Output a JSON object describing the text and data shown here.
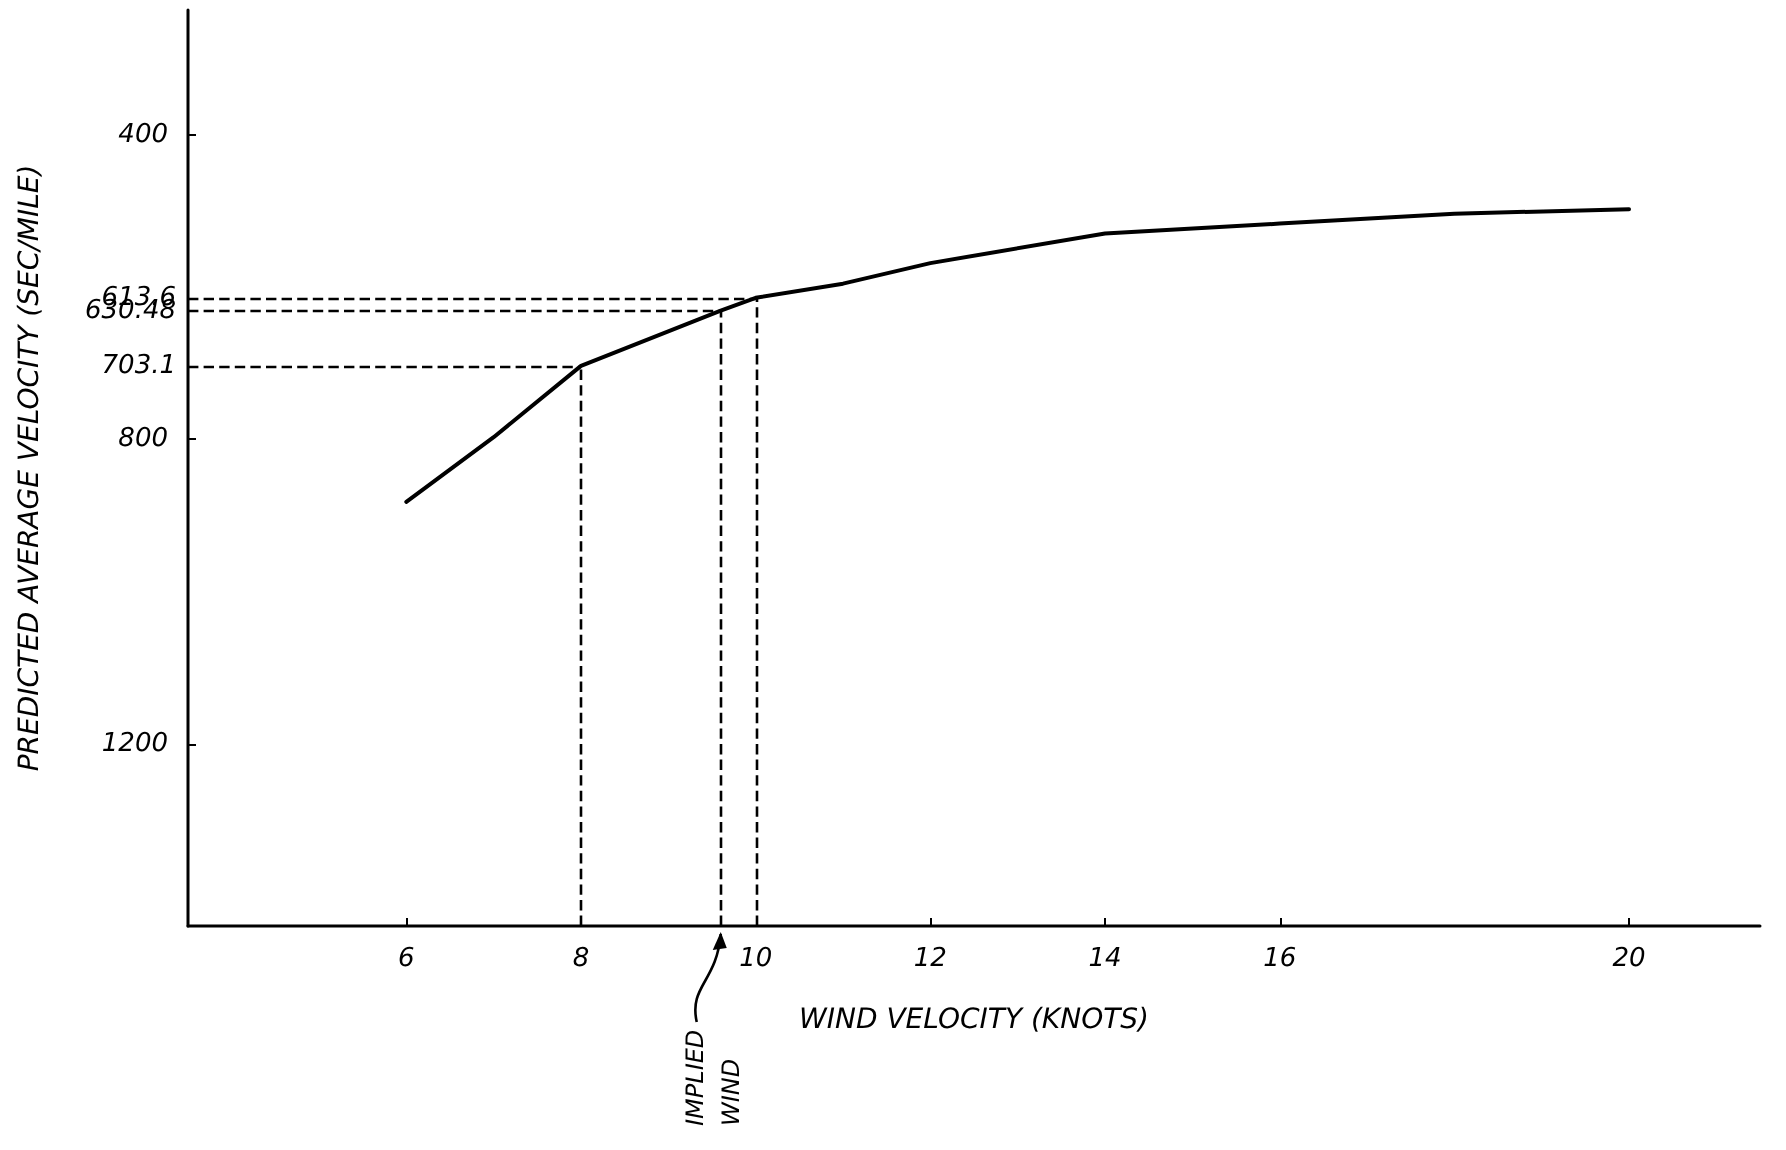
{
  "chart_data": {
    "type": "line",
    "xlabel": "WIND VELOCITY (KNOTS)",
    "ylabel": "PREDICTED AVERAGE VELOCITY (SEC/MILE)",
    "x": [
      6,
      7,
      8,
      9.6,
      10,
      11,
      12,
      14,
      16,
      18,
      20
    ],
    "series": [
      {
        "color": "#000000",
        "values": [
          882,
          797,
          703.1,
          630.48,
          613.6,
          595,
          568,
          529,
          516,
          503,
          497
        ]
      }
    ],
    "xlim": [
      3.5,
      21.5
    ],
    "xticks": [
      6,
      8,
      10,
      12,
      14,
      16,
      20
    ],
    "ylim": [
      1440,
      235
    ],
    "yticks": [
      400,
      800,
      1200
    ],
    "grid": false,
    "marker": "none",
    "line_style": "solid",
    "ref_lines": [
      {
        "axis": "y",
        "value": 613.6,
        "label": "613.6",
        "line_style": "dashed"
      },
      {
        "axis": "y",
        "value": 630.48,
        "label": "630.48",
        "line_style": "dashed"
      },
      {
        "axis": "y",
        "value": 703.1,
        "label": "703.1",
        "line_style": "dashed"
      },
      {
        "axis": "x",
        "value": 8,
        "label": null,
        "line_style": "dashed"
      },
      {
        "axis": "x",
        "value": 9.6,
        "label": "IMPLIED WIND",
        "line_style": "dashed"
      },
      {
        "axis": "x",
        "value": 10,
        "label": null,
        "line_style": "dashed"
      }
    ]
  }
}
